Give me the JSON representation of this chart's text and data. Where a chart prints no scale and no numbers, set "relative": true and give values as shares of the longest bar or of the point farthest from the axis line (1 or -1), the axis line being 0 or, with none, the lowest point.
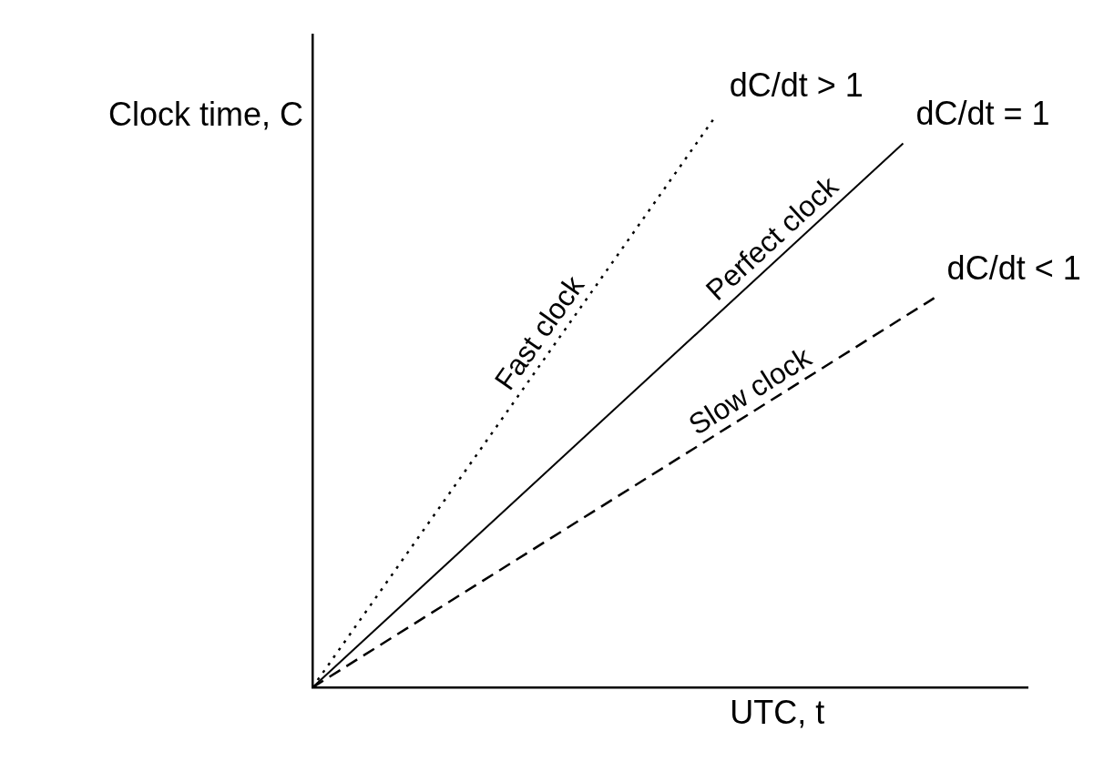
{
  "chart_data": {
    "type": "line",
    "relative": true,
    "xlabel": "UTC, t",
    "ylabel": "Clock time, C",
    "grid": false,
    "legend": false,
    "marker": "none",
    "categories": [
      null,
      null,
      null,
      null,
      null,
      null,
      null,
      null,
      null,
      null,
      null,
      null,
      null,
      null,
      null,
      null,
      null,
      null,
      null,
      null,
      null,
      null,
      null,
      null
    ],
    "series": [
      {
        "name": "Fast clock",
        "color": "#000000",
        "line_style": "dotted",
        "values": [
          0,
          null,
          null,
          null,
          null,
          null,
          null,
          null,
          null,
          null,
          null,
          null,
          null,
          1,
          null,
          null,
          null,
          null,
          null,
          null,
          null,
          null,
          null,
          null
        ]
      },
      {
        "name": "Perfect clock",
        "color": "#000000",
        "line_style": "solid",
        "values": [
          0,
          null,
          null,
          null,
          null,
          null,
          null,
          null,
          null,
          null,
          null,
          null,
          null,
          null,
          null,
          null,
          null,
          null,
          null,
          0.95,
          null,
          null,
          null,
          null
        ]
      },
      {
        "name": "Slow clock",
        "color": "#000000",
        "line_style": "dashed",
        "values": [
          0,
          null,
          null,
          null,
          null,
          null,
          null,
          null,
          null,
          null,
          null,
          null,
          null,
          null,
          null,
          null,
          null,
          null,
          null,
          null,
          0.68,
          null,
          null,
          null
        ]
      }
    ],
    "annotations": [
      "dC/dt > 1",
      "dC/dt = 1",
      "dC/dt < 1"
    ]
  }
}
